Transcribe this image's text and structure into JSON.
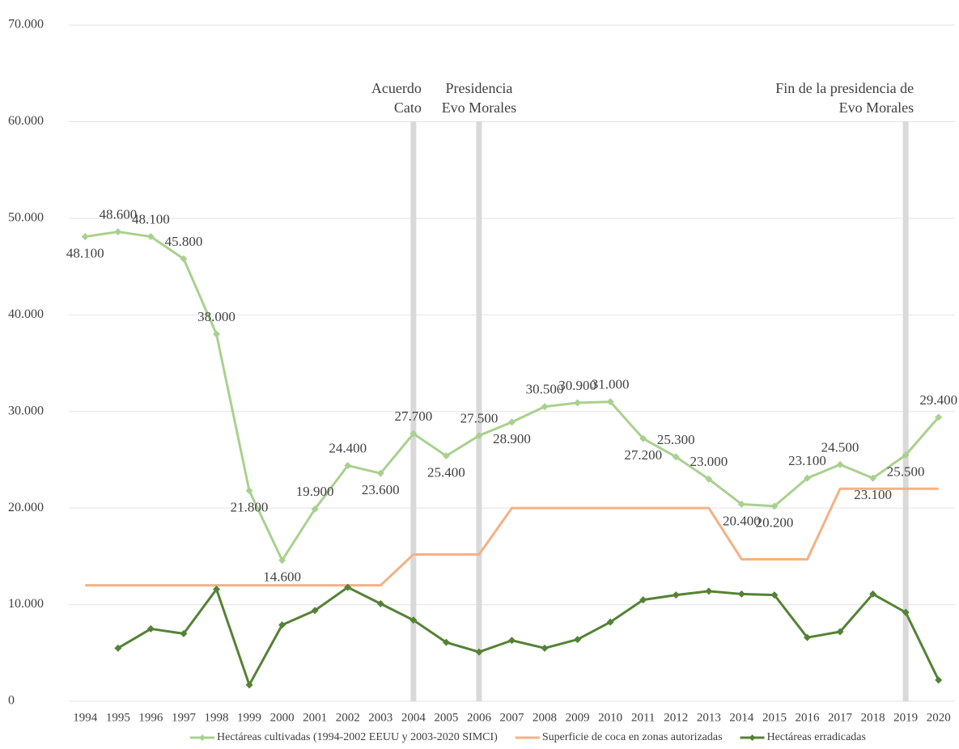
{
  "chart_data": {
    "type": "line",
    "categories": [
      1994,
      1995,
      1996,
      1997,
      1998,
      1999,
      2000,
      2001,
      2002,
      2003,
      2004,
      2005,
      2006,
      2007,
      2008,
      2009,
      2010,
      2011,
      2012,
      2013,
      2014,
      2015,
      2016,
      2017,
      2018,
      2019,
      2020
    ],
    "series": [
      {
        "name": "Hectáreas cultivadas (1994-2002 EEUU y 2003-2020 SIMCI)",
        "color": "#a9d18e",
        "marker": true,
        "values": [
          48100,
          48600,
          48100,
          45800,
          38000,
          21800,
          14600,
          19900,
          24400,
          23600,
          27700,
          25400,
          27500,
          28900,
          30500,
          30900,
          31000,
          27200,
          25300,
          23000,
          20400,
          20200,
          23100,
          24500,
          23100,
          25500,
          29400
        ],
        "value_labels": [
          "48.100",
          "48.600",
          "48.100",
          "45.800",
          "38.000",
          "21.800",
          "14.600",
          "19.900",
          "24.400",
          "23.600",
          "27.700",
          "25.400",
          "27.500",
          "28.900",
          "30.500",
          "30.900",
          "31.000",
          "27.200",
          "25.300",
          "23.000",
          "20.400",
          "20.200",
          "23.100",
          "24.500",
          "23.100",
          "25.500",
          "29.400"
        ]
      },
      {
        "name": "Superficie de coca en zonas autorizadas",
        "color": "#f4b183",
        "marker": false,
        "values": [
          12000,
          12000,
          12000,
          12000,
          12000,
          12000,
          12000,
          12000,
          12000,
          12000,
          15200,
          15200,
          15200,
          20000,
          20000,
          20000,
          20000,
          20000,
          20000,
          20000,
          14700,
          14700,
          14700,
          22000,
          22000,
          22000,
          22000
        ]
      },
      {
        "name": "Hectáreas erradicadas",
        "color": "#548235",
        "marker": true,
        "values": [
          null,
          5500,
          7500,
          7000,
          11600,
          1700,
          7900,
          9400,
          11800,
          10100,
          8400,
          6100,
          5100,
          6300,
          5500,
          6400,
          8200,
          10500,
          11000,
          11400,
          11100,
          11000,
          6600,
          7200,
          11100,
          9200,
          2200
        ]
      }
    ],
    "ylim": [
      0,
      70000
    ],
    "yticks": [
      0,
      {
        "value": 10000,
        "label": "10.000"
      },
      {
        "value": 20000,
        "label": "20.000"
      },
      {
        "value": 30000,
        "label": "30.000"
      },
      {
        "value": 40000,
        "label": "40.000"
      },
      {
        "value": 50000,
        "label": "50.000"
      },
      {
        "value": 60000,
        "label": "60.000"
      },
      {
        "value": 70000,
        "label": "70.000"
      }
    ],
    "grid": true,
    "legend": "bottom",
    "annotations": [
      {
        "x": 2004,
        "lines": [
          "Acuerdo",
          "Cato"
        ],
        "align": "right"
      },
      {
        "x": 2006,
        "lines": [
          "Presidencia",
          "Evo Morales"
        ],
        "align": "center"
      },
      {
        "x": 2019,
        "lines": [
          "Fin de la presidencia de",
          "Evo Morales"
        ],
        "align": "right"
      }
    ]
  }
}
